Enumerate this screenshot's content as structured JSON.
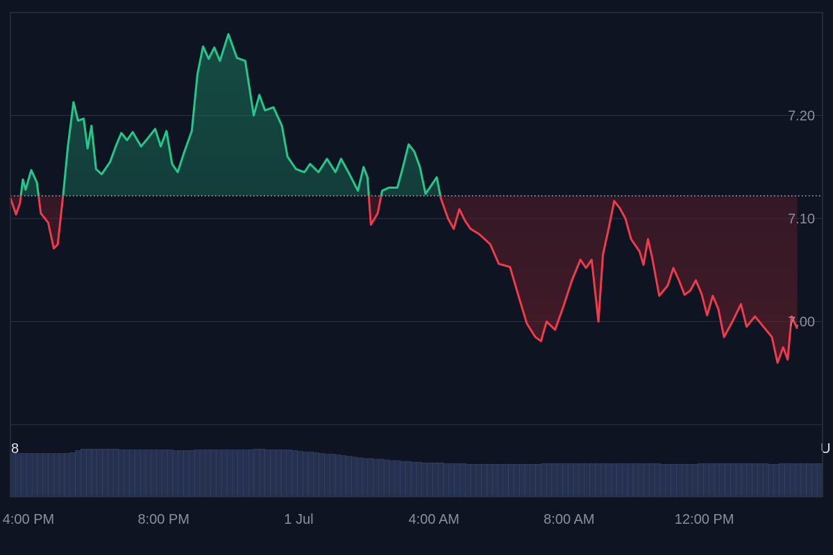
{
  "colors": {
    "background": "#0e1422",
    "above_line": "#22c98a",
    "below_line": "#f23b4a",
    "volume": "#26304f"
  },
  "edge_labels": {
    "left": "8",
    "right": "U"
  },
  "chart_data": {
    "type": "line",
    "title": "",
    "xlabel": "",
    "ylabel": "",
    "baseline": 7.122,
    "ylim": [
      6.9,
      7.3
    ],
    "y_ticks": [
      7.0,
      7.1,
      7.2
    ],
    "y_tick_labels": [
      "7.00",
      "7.10",
      "7.20"
    ],
    "x_domain": [
      "2025-06-30T15:28",
      "2025-07-01T15:30"
    ],
    "x_ticks": [
      {
        "time": "2025-06-30T16:00",
        "label": "4:00 PM"
      },
      {
        "time": "2025-06-30T20:00",
        "label": "8:00 PM"
      },
      {
        "time": "2025-07-01T00:00",
        "label": "1 Jul"
      },
      {
        "time": "2025-07-01T04:00",
        "label": "4:00 AM"
      },
      {
        "time": "2025-07-01T08:00",
        "label": "8:00 AM"
      },
      {
        "time": "2025-07-01T12:00",
        "label": "12:00 PM"
      }
    ],
    "series": [
      {
        "points": [
          [
            "2025-06-30T15:28",
            7.12
          ],
          [
            "2025-06-30T15:38",
            7.104
          ],
          [
            "2025-06-30T15:45",
            7.115
          ],
          [
            "2025-06-30T15:50",
            7.138
          ],
          [
            "2025-06-30T15:55",
            7.128
          ],
          [
            "2025-06-30T16:05",
            7.147
          ],
          [
            "2025-06-30T16:15",
            7.135
          ],
          [
            "2025-06-30T16:22",
            7.105
          ],
          [
            "2025-06-30T16:35",
            7.096
          ],
          [
            "2025-06-30T16:45",
            7.071
          ],
          [
            "2025-06-30T16:52",
            7.075
          ],
          [
            "2025-06-30T17:02",
            7.125
          ],
          [
            "2025-06-30T17:10",
            7.17
          ],
          [
            "2025-06-30T17:20",
            7.213
          ],
          [
            "2025-06-30T17:28",
            7.195
          ],
          [
            "2025-06-30T17:38",
            7.197
          ],
          [
            "2025-06-30T17:45",
            7.168
          ],
          [
            "2025-06-30T17:52",
            7.19
          ],
          [
            "2025-06-30T18:00",
            7.148
          ],
          [
            "2025-06-30T18:10",
            7.143
          ],
          [
            "2025-06-30T18:25",
            7.155
          ],
          [
            "2025-06-30T18:35",
            7.17
          ],
          [
            "2025-06-30T18:45",
            7.183
          ],
          [
            "2025-06-30T18:55",
            7.176
          ],
          [
            "2025-06-30T19:05",
            7.184
          ],
          [
            "2025-06-30T19:20",
            7.17
          ],
          [
            "2025-06-30T19:35",
            7.18
          ],
          [
            "2025-06-30T19:45",
            7.187
          ],
          [
            "2025-06-30T19:55",
            7.17
          ],
          [
            "2025-06-30T20:05",
            7.185
          ],
          [
            "2025-06-30T20:15",
            7.153
          ],
          [
            "2025-06-30T20:25",
            7.145
          ],
          [
            "2025-06-30T20:35",
            7.162
          ],
          [
            "2025-06-30T20:50",
            7.185
          ],
          [
            "2025-06-30T21:00",
            7.24
          ],
          [
            "2025-06-30T21:10",
            7.267
          ],
          [
            "2025-06-30T21:20",
            7.255
          ],
          [
            "2025-06-30T21:30",
            7.266
          ],
          [
            "2025-06-30T21:40",
            7.253
          ],
          [
            "2025-06-30T21:55",
            7.279
          ],
          [
            "2025-06-30T22:10",
            7.256
          ],
          [
            "2025-06-30T22:25",
            7.253
          ],
          [
            "2025-06-30T22:40",
            7.2
          ],
          [
            "2025-06-30T22:50",
            7.22
          ],
          [
            "2025-06-30T23:00",
            7.205
          ],
          [
            "2025-06-30T23:15",
            7.208
          ],
          [
            "2025-06-30T23:30",
            7.19
          ],
          [
            "2025-06-30T23:40",
            7.16
          ],
          [
            "2025-06-30T23:55",
            7.148
          ],
          [
            "2025-07-01T00:10",
            7.145
          ],
          [
            "2025-07-01T00:20",
            7.153
          ],
          [
            "2025-07-01T00:35",
            7.145
          ],
          [
            "2025-07-01T00:50",
            7.158
          ],
          [
            "2025-07-01T01:05",
            7.145
          ],
          [
            "2025-07-01T01:15",
            7.158
          ],
          [
            "2025-07-01T01:30",
            7.143
          ],
          [
            "2025-07-01T01:45",
            7.127
          ],
          [
            "2025-07-01T01:55",
            7.15
          ],
          [
            "2025-07-01T02:02",
            7.14
          ],
          [
            "2025-07-01T02:08",
            7.094
          ],
          [
            "2025-07-01T02:20",
            7.105
          ],
          [
            "2025-07-01T02:28",
            7.127
          ],
          [
            "2025-07-01T02:40",
            7.13
          ],
          [
            "2025-07-01T02:55",
            7.13
          ],
          [
            "2025-07-01T03:05",
            7.15
          ],
          [
            "2025-07-01T03:15",
            7.172
          ],
          [
            "2025-07-01T03:25",
            7.165
          ],
          [
            "2025-07-01T03:35",
            7.15
          ],
          [
            "2025-07-01T03:45",
            7.124
          ],
          [
            "2025-07-01T03:55",
            7.132
          ],
          [
            "2025-07-01T04:05",
            7.14
          ],
          [
            "2025-07-01T04:12",
            7.12
          ],
          [
            "2025-07-01T04:25",
            7.1
          ],
          [
            "2025-07-01T04:35",
            7.09
          ],
          [
            "2025-07-01T04:45",
            7.109
          ],
          [
            "2025-07-01T04:55",
            7.098
          ],
          [
            "2025-07-01T05:05",
            7.09
          ],
          [
            "2025-07-01T05:20",
            7.085
          ],
          [
            "2025-07-01T05:40",
            7.075
          ],
          [
            "2025-07-01T05:55",
            7.056
          ],
          [
            "2025-07-01T06:15",
            7.053
          ],
          [
            "2025-07-01T06:30",
            7.025
          ],
          [
            "2025-07-01T06:45",
            6.998
          ],
          [
            "2025-07-01T07:00",
            6.985
          ],
          [
            "2025-07-01T07:10",
            6.981
          ],
          [
            "2025-07-01T07:20",
            7.0
          ],
          [
            "2025-07-01T07:35",
            6.992
          ],
          [
            "2025-07-01T07:50",
            7.015
          ],
          [
            "2025-07-01T08:05",
            7.04
          ],
          [
            "2025-07-01T08:20",
            7.06
          ],
          [
            "2025-07-01T08:30",
            7.052
          ],
          [
            "2025-07-01T08:40",
            7.06
          ],
          [
            "2025-07-01T08:52",
            7.0
          ],
          [
            "2025-07-01T09:00",
            7.065
          ],
          [
            "2025-07-01T09:10",
            7.09
          ],
          [
            "2025-07-01T09:20",
            7.117
          ],
          [
            "2025-07-01T09:30",
            7.11
          ],
          [
            "2025-07-01T09:40",
            7.1
          ],
          [
            "2025-07-01T09:50",
            7.08
          ],
          [
            "2025-07-01T10:05",
            7.068
          ],
          [
            "2025-07-01T10:12",
            7.055
          ],
          [
            "2025-07-01T10:20",
            7.08
          ],
          [
            "2025-07-01T10:27",
            7.063
          ],
          [
            "2025-07-01T10:40",
            7.025
          ],
          [
            "2025-07-01T10:55",
            7.035
          ],
          [
            "2025-07-01T11:05",
            7.052
          ],
          [
            "2025-07-01T11:15",
            7.04
          ],
          [
            "2025-07-01T11:25",
            7.026
          ],
          [
            "2025-07-01T11:35",
            7.03
          ],
          [
            "2025-07-01T11:45",
            7.04
          ],
          [
            "2025-07-01T11:55",
            7.027
          ],
          [
            "2025-07-01T12:05",
            7.006
          ],
          [
            "2025-07-01T12:15",
            7.025
          ],
          [
            "2025-07-01T12:25",
            7.012
          ],
          [
            "2025-07-01T12:35",
            6.985
          ],
          [
            "2025-07-01T12:50",
            7.0
          ],
          [
            "2025-07-01T13:05",
            7.017
          ],
          [
            "2025-07-01T13:15",
            6.995
          ],
          [
            "2025-07-01T13:30",
            7.005
          ],
          [
            "2025-07-01T13:45",
            6.995
          ],
          [
            "2025-07-01T14:00",
            6.985
          ],
          [
            "2025-07-01T14:10",
            6.96
          ],
          [
            "2025-07-01T14:20",
            6.975
          ],
          [
            "2025-07-01T14:28",
            6.963
          ],
          [
            "2025-07-01T14:35",
            7.005
          ],
          [
            "2025-07-01T14:45",
            6.993
          ]
        ]
      }
    ],
    "volume": {
      "ylim": [
        0,
        1
      ],
      "values": [
        0.6,
        0.6,
        0.6,
        0.6,
        0.6,
        0.6,
        0.6,
        0.6,
        0.6,
        0.6,
        0.6,
        0.61,
        0.64,
        0.66,
        0.66,
        0.66,
        0.66,
        0.66,
        0.66,
        0.66,
        0.65,
        0.65,
        0.65,
        0.65,
        0.65,
        0.65,
        0.65,
        0.65,
        0.65,
        0.65,
        0.64,
        0.64,
        0.64,
        0.64,
        0.65,
        0.65,
        0.65,
        0.65,
        0.65,
        0.65,
        0.65,
        0.65,
        0.65,
        0.65,
        0.65,
        0.66,
        0.66,
        0.65,
        0.65,
        0.65,
        0.65,
        0.65,
        0.64,
        0.63,
        0.62,
        0.62,
        0.61,
        0.6,
        0.59,
        0.59,
        0.58,
        0.57,
        0.56,
        0.55,
        0.54,
        0.53,
        0.53,
        0.52,
        0.52,
        0.51,
        0.5,
        0.5,
        0.49,
        0.49,
        0.48,
        0.48,
        0.47,
        0.47,
        0.47,
        0.47,
        0.46,
        0.46,
        0.46,
        0.46,
        0.45,
        0.45,
        0.45,
        0.45,
        0.45,
        0.45,
        0.45,
        0.45,
        0.45,
        0.45,
        0.45,
        0.45,
        0.45,
        0.45,
        0.46,
        0.46,
        0.46,
        0.46,
        0.46,
        0.46,
        0.46,
        0.46,
        0.46,
        0.46,
        0.46,
        0.46,
        0.46,
        0.46,
        0.46,
        0.46,
        0.46,
        0.46,
        0.46,
        0.46,
        0.46,
        0.46,
        0.45,
        0.45,
        0.45,
        0.45,
        0.45,
        0.45,
        0.45,
        0.46,
        0.46,
        0.46,
        0.46,
        0.46,
        0.46,
        0.46,
        0.46,
        0.46,
        0.46,
        0.46,
        0.46,
        0.46,
        0.45,
        0.45,
        0.46,
        0.46,
        0.46,
        0.46,
        0.46,
        0.46,
        0.46,
        0.46
      ]
    }
  }
}
